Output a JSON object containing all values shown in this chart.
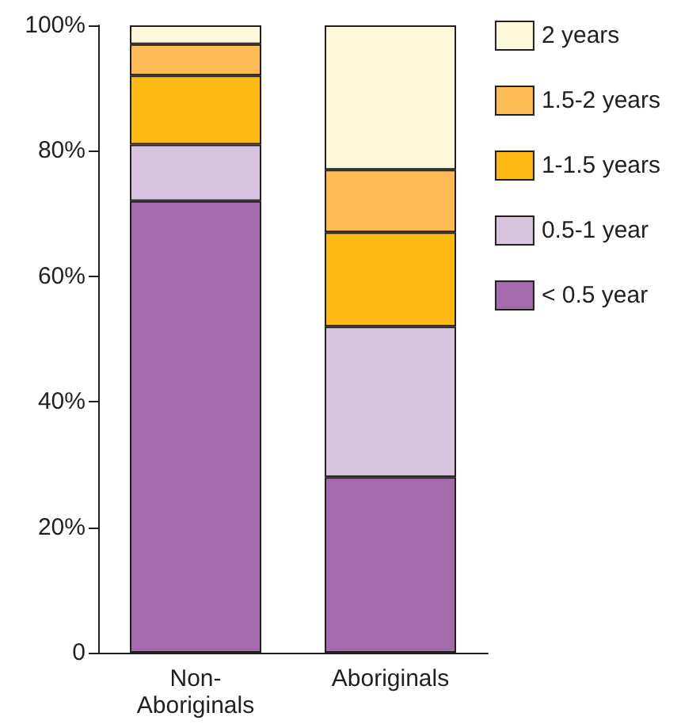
{
  "chart_data": {
    "type": "bar",
    "stacked": true,
    "categories": [
      "Non-Aboriginals",
      "Aboriginals"
    ],
    "series": [
      {
        "name": "< 0.5 year",
        "color": "#a36bab",
        "values": [
          72,
          28
        ]
      },
      {
        "name": "0.5-1 year",
        "color": "#d9c4df",
        "values": [
          9,
          24
        ]
      },
      {
        "name": "1-1.5 years",
        "color": "#fdb913",
        "values": [
          11,
          15
        ]
      },
      {
        "name": "1.5-2 years",
        "color": "#fdbb55",
        "values": [
          5,
          10
        ]
      },
      {
        "name": "2 years",
        "color": "#fef8dc",
        "values": [
          3,
          23
        ]
      }
    ],
    "ylim": [
      0,
      100
    ],
    "yticks": [
      {
        "value": 0,
        "label": "0"
      },
      {
        "value": 20,
        "label": "20%"
      },
      {
        "value": 40,
        "label": "40%"
      },
      {
        "value": 60,
        "label": "60%"
      },
      {
        "value": 80,
        "label": "80%"
      },
      {
        "value": 100,
        "label": "100%"
      }
    ],
    "grid": false,
    "legend": "right"
  }
}
